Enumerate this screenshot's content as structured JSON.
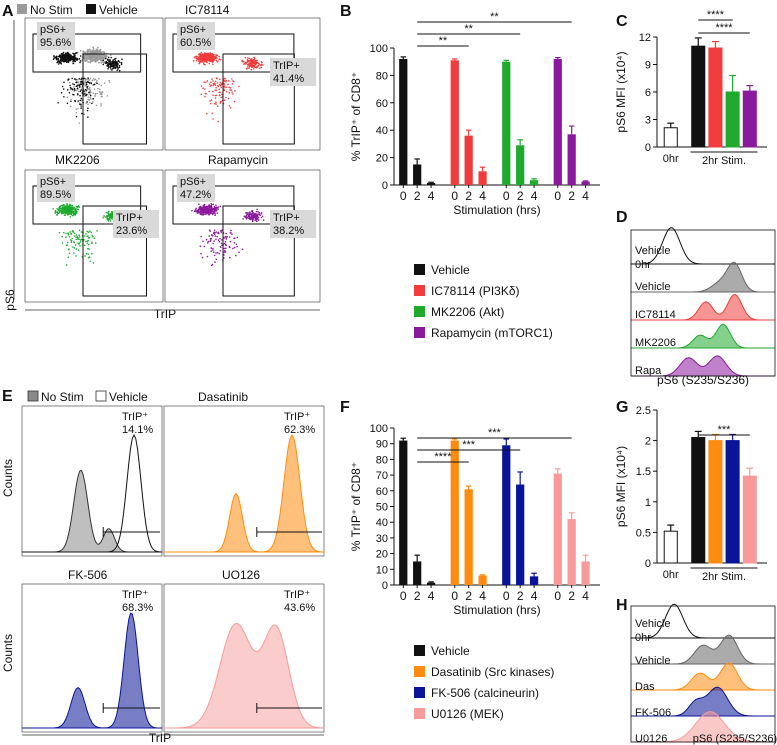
{
  "colors": {
    "black": "#111111",
    "nostim": "#9a9a9a",
    "red": "#f03c3c",
    "green": "#1faa2e",
    "purple": "#8a1a9c",
    "orange": "#ff8c10",
    "navy": "#0a1496",
    "pink": "#f79a9a",
    "gate_fill": "#d9d9d9"
  },
  "panels": {
    "A": {
      "label": "A",
      "legend_nostim": "No Stim",
      "legend_vehicle": "Vehicle",
      "y_axis": "pS6",
      "x_axis": "TrIP",
      "plots": [
        {
          "title": "",
          "ps6": "pS6+",
          "ps6_val": "95.6%",
          "trip": "",
          "trip_val": ""
        },
        {
          "title": "IC78114",
          "ps6": "pS6+",
          "ps6_val": "60.5%",
          "trip": "TrIP+",
          "trip_val": "41.4%"
        },
        {
          "title": "MK2206",
          "ps6": "pS6+",
          "ps6_val": "89.5%",
          "trip": "TrIP+",
          "trip_val": "23.6%"
        },
        {
          "title": "Rapamycin",
          "ps6": "pS6+",
          "ps6_val": "47.2%",
          "trip": "TrIP+",
          "trip_val": "38.2%"
        }
      ]
    },
    "B": {
      "label": "B"
    },
    "C": {
      "label": "C"
    },
    "D": {
      "label": "D",
      "rows": [
        "Vehicle",
        "0hr",
        "Vehicle",
        "IC78114",
        "MK2206",
        "Rapa"
      ],
      "xlabel": "pS6 (S235/S236)"
    },
    "E": {
      "label": "E",
      "legend_nostim": "No Stim",
      "legend_vehicle": "Vehicle",
      "y_axis": "Counts",
      "x_axis": "TrIP",
      "plots": [
        {
          "title": "",
          "gate": "TrIP⁺",
          "val": "14.1%"
        },
        {
          "title": "Dasatinib",
          "gate": "TrIP⁺",
          "val": "62.3%"
        },
        {
          "title": "FK-506",
          "gate": "TrIP⁺",
          "val": "68.3%"
        },
        {
          "title": "UO126",
          "gate": "TrIP⁺",
          "val": "43.6%"
        }
      ]
    },
    "F": {
      "label": "F"
    },
    "G": {
      "label": "G"
    },
    "H": {
      "label": "H",
      "rows": [
        "Vehicle",
        "0hr",
        "Vehicle",
        "Das",
        "FK-506",
        "U0126"
      ],
      "xlabel": "pS6 (S235/S236)"
    }
  },
  "chart_data": [
    {
      "id": "B",
      "type": "bar",
      "ylabel": "% TrIP⁺ of CD8⁺",
      "xlabel": "Stimulation (hrs)",
      "ylim": [
        0,
        100
      ],
      "yticks": [
        "0",
        "20",
        "40",
        "60",
        "80",
        "100"
      ],
      "categories": [
        "0",
        "2",
        "4"
      ],
      "series": [
        {
          "name": "Vehicle",
          "color": "#111111",
          "values": [
            92,
            15,
            1.5
          ],
          "errors": [
            1.5,
            4,
            0.5
          ]
        },
        {
          "name": "IC78114 (PI3Kδ)",
          "color": "#f03c3c",
          "values": [
            91,
            36,
            10
          ],
          "errors": [
            1,
            4,
            3
          ]
        },
        {
          "name": "MK2206 (Akt)",
          "color": "#1faa2e",
          "values": [
            90,
            29,
            3.5
          ],
          "errors": [
            1,
            4,
            1
          ]
        },
        {
          "name": "Rapamycin (mTORC1)",
          "color": "#8a1a9c",
          "values": [
            92,
            37,
            2.5
          ],
          "errors": [
            1,
            6,
            0.5
          ]
        }
      ],
      "significance": [
        {
          "label": "**",
          "from_series": 0,
          "to_series": 1
        },
        {
          "label": "**",
          "from_series": 0,
          "to_series": 2
        },
        {
          "label": "**",
          "from_series": 0,
          "to_series": 3
        }
      ]
    },
    {
      "id": "C",
      "type": "bar",
      "ylabel": "pS6 MFI (x10⁴)",
      "ylim": [
        0,
        12
      ],
      "yticks": [
        "0",
        "3",
        "6",
        "9",
        "12"
      ],
      "categories": [
        "0hr",
        "2hr Stim."
      ],
      "bars": [
        {
          "name": "0hr",
          "color": "#ffffff",
          "value": 2.1,
          "error": 0.5
        },
        {
          "name": "Vehicle",
          "color": "#111111",
          "value": 11.0,
          "error": 0.9
        },
        {
          "name": "IC78114",
          "color": "#f03c3c",
          "value": 10.8,
          "error": 0.7
        },
        {
          "name": "MK2206",
          "color": "#1faa2e",
          "value": 6.0,
          "error": 1.8
        },
        {
          "name": "Rapamycin",
          "color": "#8a1a9c",
          "value": 6.1,
          "error": 0.6
        }
      ],
      "significance": [
        {
          "label": "****",
          "from_bar": 1,
          "to_bar": 3
        },
        {
          "label": "****",
          "from_bar": 1,
          "to_bar": 4
        }
      ]
    },
    {
      "id": "F",
      "type": "bar",
      "ylabel": "% TrIP⁺ of CD8⁺",
      "xlabel": "Stimulation (hrs)",
      "ylim": [
        0,
        100
      ],
      "yticks": [
        "0",
        "10",
        "20",
        "30",
        "40",
        "50",
        "60",
        "70",
        "80",
        "90",
        "100"
      ],
      "categories": [
        "0",
        "2",
        "4"
      ],
      "series": [
        {
          "name": "Vehicle",
          "color": "#111111",
          "values": [
            92,
            15,
            1.5
          ],
          "errors": [
            1.5,
            4,
            0.5
          ]
        },
        {
          "name": "Dasatinib (Src kinases)",
          "color": "#ff8c10",
          "values": [
            92,
            61,
            6
          ],
          "errors": [
            1,
            2,
            0.5
          ]
        },
        {
          "name": "FK-506 (calcineurin)",
          "color": "#0a1496",
          "values": [
            89,
            64,
            5.5
          ],
          "errors": [
            4,
            8,
            2
          ]
        },
        {
          "name": "U0126 (MEK)",
          "color": "#f79a9a",
          "values": [
            71,
            42,
            15
          ],
          "errors": [
            3,
            4,
            4
          ]
        }
      ],
      "significance": [
        {
          "label": "****",
          "from_series": 0,
          "to_series": 1
        },
        {
          "label": "***",
          "from_series": 0,
          "to_series": 2
        },
        {
          "label": "***",
          "from_series": 0,
          "to_series": 3
        }
      ]
    },
    {
      "id": "G",
      "type": "bar",
      "ylabel": "pS6 MFI (x10⁴)",
      "ylim": [
        0,
        2.5
      ],
      "yticks": [
        "0",
        "0.5",
        "1",
        "1.5",
        "2",
        "2.5"
      ],
      "categories": [
        "0hr",
        "2hr Stim."
      ],
      "bars": [
        {
          "name": "0hr",
          "color": "#ffffff",
          "value": 0.52,
          "error": 0.1
        },
        {
          "name": "Vehicle",
          "color": "#111111",
          "value": 2.05,
          "error": 0.1
        },
        {
          "name": "Dasatinib",
          "color": "#ff8c10",
          "value": 2.0,
          "error": 0.1
        },
        {
          "name": "FK-506",
          "color": "#0a1496",
          "value": 2.0,
          "error": 0.1
        },
        {
          "name": "U0126",
          "color": "#f79a9a",
          "value": 1.42,
          "error": 0.13
        }
      ],
      "significance": [
        {
          "label": "***",
          "from_bar": 1,
          "to_bar": 4
        }
      ]
    }
  ]
}
